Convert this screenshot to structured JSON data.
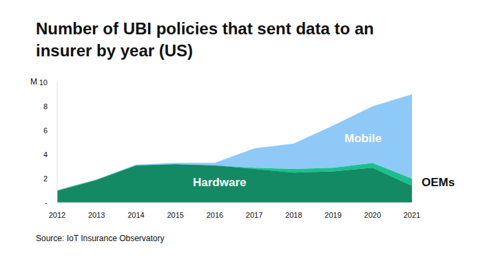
{
  "chart_data": {
    "type": "area",
    "title": "Number of UBI policies that sent data to an insurer by year (US)",
    "source": "Source: IoT Insurance Observatory",
    "y_label": "M",
    "stacked": true,
    "categories": [
      "2012",
      "2013",
      "2014",
      "2015",
      "2016",
      "2017",
      "2018",
      "2019",
      "2020",
      "2021"
    ],
    "series": [
      {
        "name": "Hardware",
        "color": "#138a63",
        "values": [
          1.0,
          1.9,
          3.1,
          3.2,
          3.1,
          2.8,
          2.5,
          2.6,
          2.9,
          1.4
        ]
      },
      {
        "name": "OEMs",
        "color": "#1dbf8c",
        "values": [
          0,
          0,
          0,
          0,
          0,
          0.1,
          0.3,
          0.3,
          0.4,
          0.6
        ]
      },
      {
        "name": "Mobile",
        "color": "#8ec9f7",
        "values": [
          0,
          0,
          0.05,
          0.1,
          0.2,
          1.6,
          2.1,
          3.5,
          4.7,
          7.0
        ]
      }
    ],
    "ylim": [
      0,
      10
    ],
    "yticks": [
      {
        "value": 0,
        "label": "-"
      },
      2,
      4,
      6,
      8,
      10
    ],
    "grid": false,
    "legend": "none"
  }
}
